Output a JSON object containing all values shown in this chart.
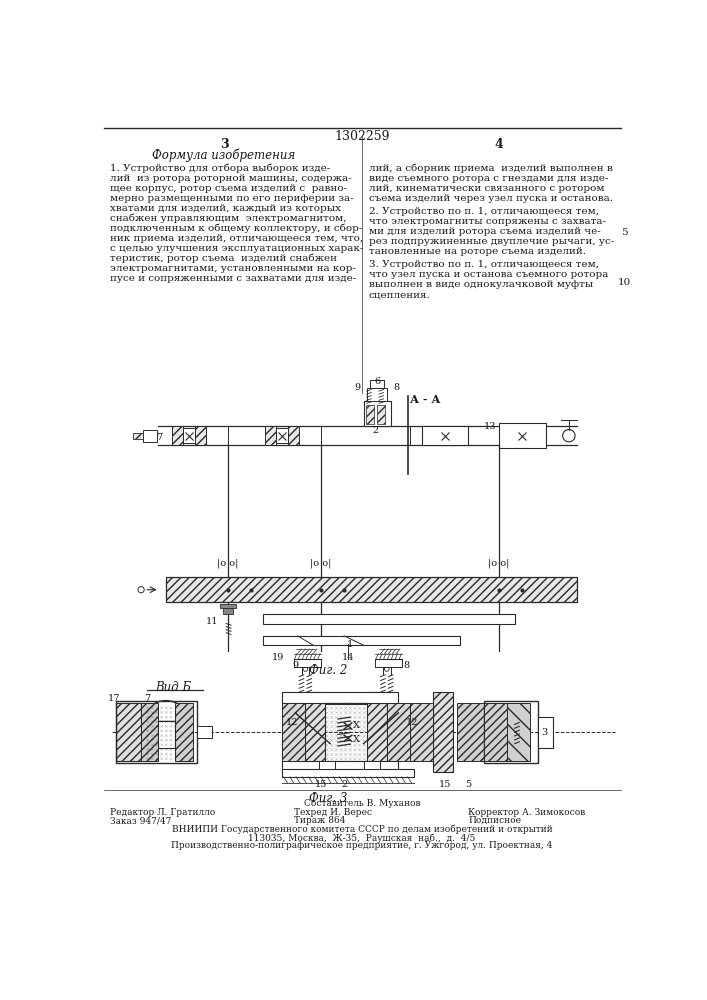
{
  "patent_number": "1302259",
  "page_left": "3",
  "page_right": "4",
  "section_title": "Формула изобретения",
  "claim1_left": [
    "1. Устройство для отбора выборок изде-",
    "лий  из ротора роторной машины, содержа-",
    "щее корпус, ротор съема изделий с  равно-",
    "мерно размещенными по его периферии за-",
    "хватами для изделий, каждый из которых",
    "снабжен управляющим  электромагнитом,",
    "подключенным к общему коллектору, и сбор-",
    "ник приема изделий, отличающееся тем, что,",
    "с целью улучшения эксплуатационных харак-",
    "теристик, ротор съема  изделий снабжен",
    "электромагнитами, установленными на кор-",
    "пусе и сопряженными с захватами для изде-"
  ],
  "claim1_right": [
    "лий, а сборник приема  изделий выполнен в",
    "виде съемного ротора с гнездами для изде-",
    "лий, кинематически связанного с ротором",
    "съема изделий через узел пуска и останова."
  ],
  "claim2": [
    "2. Устройство по п. 1, отличающееся тем,",
    "что электромагниты сопряжены с захвата-",
    "ми для изделий ротора съема изделий че-",
    "рез подпружиненные двуплечие рычаги, ус-",
    "тановленные на роторе съема изделий."
  ],
  "claim3": [
    "3. Устройство по п. 1, отличающееся тем,",
    "что узел пуска и останова съемного ротора",
    "выполнен в виде однокулачковой муфты",
    "сцепления."
  ],
  "num5": "5",
  "num10": "10",
  "fig2_label": "Фиг. 2",
  "fig2_section_label": "А - А",
  "fig3_label": "Фиг. 3",
  "fig3_view_label": "Вид Б",
  "footer_compositor": "Составитель В. Муханов",
  "footer_editor": "Редактор Л. Гратилло",
  "footer_techred": "Техред И. Верес",
  "footer_corrector": "Корректор А. Зимокосов",
  "footer_order": "Заказ 947/47",
  "footer_tirazh": "Тираж 864",
  "footer_podpisnoe": "Подписное",
  "footer_vniiipi": "ВНИИПИ Государственного комитета СССР по делам изобретений и открытий",
  "footer_address": "113035, Москва,  Ж-35,  Раушская  наб.,  д.  4/5",
  "footer_factory": "Производственно-полиграфическое предприятие, г. Ужгород, ул. Проектная, 4",
  "bg_color": "#ffffff",
  "text_color": "#1a1a1a",
  "line_color": "#2a2a2a"
}
